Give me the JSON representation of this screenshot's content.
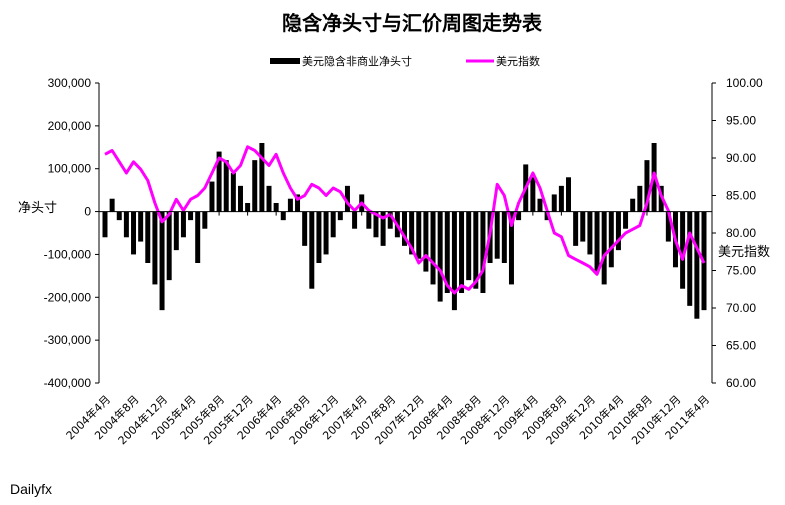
{
  "chart_data": {
    "type": "bar+line",
    "title": "隐含净头寸与汇价周图走势表",
    "source": "Dailyfx",
    "left_axis": {
      "label": "净头寸",
      "ylim": [
        -400000,
        300000
      ],
      "ticks": [
        300000,
        200000,
        100000,
        0,
        -100000,
        -200000,
        -300000,
        -400000
      ],
      "tick_labels": [
        "300,000",
        "200,000",
        "100,000",
        "0",
        "-100,000",
        "-200,000",
        "-300,000",
        "-400,000"
      ]
    },
    "right_axis": {
      "label": "美元指数",
      "ylim": [
        60,
        100
      ],
      "ticks": [
        100,
        95,
        90,
        85,
        80,
        75,
        70,
        65,
        60
      ],
      "tick_labels": [
        "100.00",
        "95.00",
        "90.00",
        "85.00",
        "80.00",
        "75.00",
        "70.00",
        "65.00",
        "60.00"
      ]
    },
    "x_categories": [
      "2004年4月",
      "2004年8月",
      "2004年12月",
      "2005年4月",
      "2005年8月",
      "2005年12月",
      "2006年4月",
      "2006年8月",
      "2006年12月",
      "2007年4月",
      "2007年8月",
      "2007年12月",
      "2008年4月",
      "2008年8月",
      "2008年12月",
      "2009年4月",
      "2009年8月",
      "2009年12月",
      "2010年4月",
      "2010年8月",
      "2010年12月",
      "2011年4月"
    ],
    "legend": {
      "position": "top",
      "items": [
        {
          "name": "美元隐含非商业净头寸",
          "color": "#000000",
          "kind": "bar"
        },
        {
          "name": "美元指数",
          "color": "#ff00ff",
          "kind": "line"
        }
      ]
    },
    "series": [
      {
        "name": "美元隐含非商业净头寸",
        "type": "bar",
        "axis": "left",
        "color": "#000000",
        "x": [
          0,
          0.25,
          0.5,
          0.75,
          1,
          1.25,
          1.5,
          1.75,
          2,
          2.25,
          2.5,
          2.75,
          3,
          3.25,
          3.5,
          3.75,
          4,
          4.25,
          4.5,
          4.75,
          5,
          5.25,
          5.5,
          5.75,
          6,
          6.25,
          6.5,
          6.75,
          7,
          7.25,
          7.5,
          7.75,
          8,
          8.25,
          8.5,
          8.75,
          9,
          9.25,
          9.5,
          9.75,
          10,
          10.25,
          10.5,
          10.75,
          11,
          11.25,
          11.5,
          11.75,
          12,
          12.25,
          12.5,
          12.75,
          13,
          13.25,
          13.5,
          13.75,
          14,
          14.25,
          14.5,
          14.75,
          15,
          15.25,
          15.5,
          15.75,
          16,
          16.25,
          16.5,
          16.75,
          17,
          17.25,
          17.5,
          17.75,
          18,
          18.25,
          18.5,
          18.75,
          19,
          19.25,
          19.5,
          19.75,
          20,
          20.25,
          20.5,
          20.75,
          21
        ],
        "values": [
          -60000,
          30000,
          -20000,
          -60000,
          -100000,
          -70000,
          -120000,
          -170000,
          -230000,
          -160000,
          -90000,
          -60000,
          -20000,
          -120000,
          -40000,
          70000,
          140000,
          120000,
          90000,
          60000,
          20000,
          120000,
          160000,
          60000,
          20000,
          -20000,
          30000,
          40000,
          -80000,
          -180000,
          -120000,
          -100000,
          -60000,
          -20000,
          60000,
          -40000,
          40000,
          -40000,
          -60000,
          -80000,
          -40000,
          -60000,
          -80000,
          -100000,
          -110000,
          -140000,
          -170000,
          -210000,
          -190000,
          -230000,
          -190000,
          -160000,
          -180000,
          -190000,
          -120000,
          -110000,
          -120000,
          -170000,
          -20000,
          110000,
          80000,
          30000,
          -20000,
          40000,
          60000,
          80000,
          -80000,
          -70000,
          -100000,
          -140000,
          -170000,
          -130000,
          -90000,
          -40000,
          30000,
          60000,
          120000,
          160000,
          60000,
          -70000,
          -130000,
          -180000,
          -220000,
          -250000,
          -230000
        ]
      },
      {
        "name": "美元指数",
        "type": "line",
        "axis": "right",
        "color": "#ff00ff",
        "x": [
          0,
          0.25,
          0.5,
          0.75,
          1,
          1.25,
          1.5,
          1.75,
          2,
          2.25,
          2.5,
          2.75,
          3,
          3.25,
          3.5,
          3.75,
          4,
          4.25,
          4.5,
          4.75,
          5,
          5.25,
          5.5,
          5.75,
          6,
          6.25,
          6.5,
          6.75,
          7,
          7.25,
          7.5,
          7.75,
          8,
          8.25,
          8.5,
          8.75,
          9,
          9.25,
          9.5,
          9.75,
          10,
          10.25,
          10.5,
          10.75,
          11,
          11.25,
          11.5,
          11.75,
          12,
          12.25,
          12.5,
          12.75,
          13,
          13.25,
          13.5,
          13.75,
          14,
          14.25,
          14.5,
          14.75,
          15,
          15.25,
          15.5,
          15.75,
          16,
          16.25,
          16.5,
          16.75,
          17,
          17.25,
          17.5,
          17.75,
          18,
          18.25,
          18.5,
          18.75,
          19,
          19.25,
          19.5,
          19.75,
          20,
          20.25,
          20.5,
          20.75,
          21
        ],
        "values": [
          90.5,
          91,
          89.5,
          88,
          89.5,
          88.5,
          87,
          84,
          81.5,
          82.5,
          84.5,
          83,
          84.5,
          85,
          86,
          88,
          90,
          89.5,
          88,
          89,
          91.5,
          91,
          90,
          89,
          90.5,
          88,
          86,
          84.5,
          85,
          86.5,
          86,
          85,
          86,
          85.5,
          84,
          83,
          84,
          83,
          82.5,
          82,
          82.5,
          81,
          79.5,
          78,
          76,
          77,
          76,
          75,
          73,
          72,
          73,
          72.5,
          73.5,
          75,
          80,
          86.5,
          85,
          81,
          84,
          86,
          88,
          86,
          83,
          80,
          79.5,
          77,
          76.5,
          76,
          75.5,
          74.5,
          77,
          78,
          79,
          80,
          80.5,
          81,
          84,
          88,
          85,
          83,
          79,
          76.5,
          80,
          78,
          76
        ]
      }
    ]
  }
}
